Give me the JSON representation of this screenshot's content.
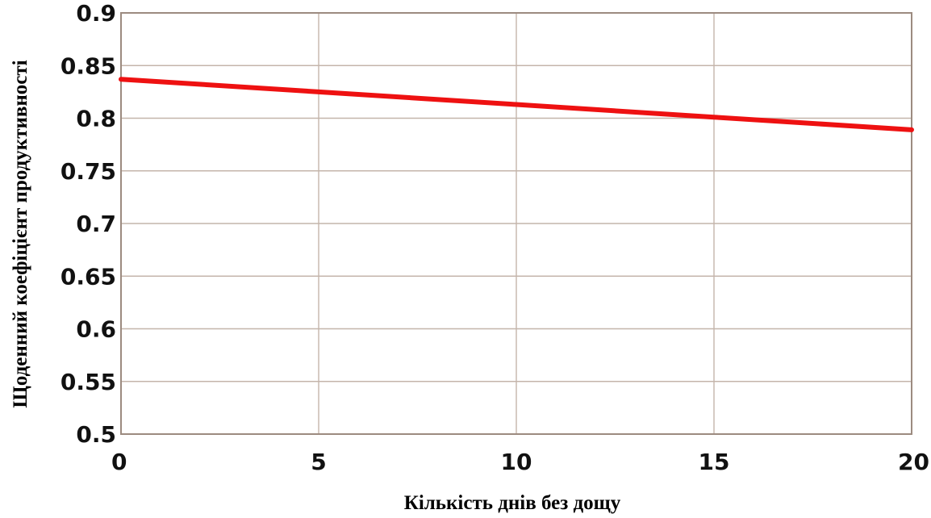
{
  "chart_data": {
    "type": "line",
    "title": "",
    "xlabel": "Кількість днів без дощу",
    "ylabel": "Щоденний коефіцієнт продуктивності",
    "xlim": [
      0,
      20
    ],
    "ylim": [
      0.5,
      0.9
    ],
    "x_ticks": [
      0,
      5,
      10,
      15,
      20
    ],
    "x_tick_labels": [
      "0",
      "5",
      "10",
      "15",
      "20"
    ],
    "y_ticks": [
      0.5,
      0.55,
      0.6,
      0.65,
      0.7,
      0.75,
      0.8,
      0.85,
      0.9
    ],
    "y_tick_labels": [
      "0.5",
      "0.55",
      "0.6",
      "0.65",
      "0.7",
      "0.75",
      "0.8",
      "0.85",
      "0.9"
    ],
    "grid": true,
    "series": [
      {
        "color": "#ee1111",
        "x": [
          0,
          5,
          10,
          15,
          20
        ],
        "y": [
          0.837,
          0.825,
          0.813,
          0.801,
          0.789
        ]
      }
    ]
  }
}
